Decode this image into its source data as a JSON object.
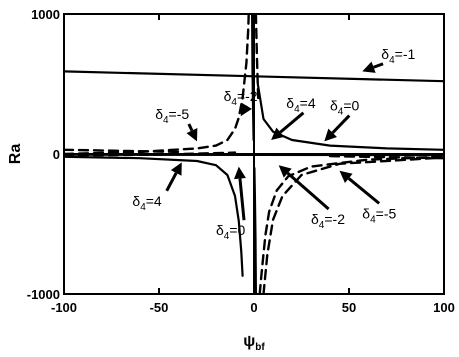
{
  "chart_data": {
    "type": "line",
    "xlabel": "ψ",
    "xlabel_sub": "bf",
    "ylabel": "Ra",
    "xlim": [
      -100,
      100
    ],
    "ylim": [
      -1000,
      1000
    ],
    "x_ticks": [
      "-100",
      "-50",
      "0",
      "50",
      "100"
    ],
    "y_ticks": [
      "-1000",
      "0",
      "1000"
    ],
    "grid": false,
    "series": [
      {
        "style": "solid",
        "segments": [
          [
            [
              -100,
              590
            ],
            [
              100,
              520
            ]
          ]
        ]
      },
      {
        "style": "solid",
        "segments": [
          [
            [
              -100,
              -20
            ],
            [
              -60,
              -30
            ],
            [
              -30,
              -50
            ],
            [
              -20,
              -80
            ],
            [
              -14,
              -150
            ],
            [
              -10,
              -300
            ],
            [
              -8,
              -480
            ],
            [
              -6.7,
              -700
            ],
            [
              -6,
              -870
            ]
          ],
          [
            [
              -1,
              1000
            ],
            [
              -0.8,
              600
            ],
            [
              -0.5,
              300
            ],
            [
              -0.2,
              100
            ]
          ],
          [
            [
              0.2,
              -100
            ],
            [
              0.5,
              -300
            ],
            [
              0.8,
              -600
            ],
            [
              1,
              -1000
            ]
          ],
          [
            [
              2,
              500
            ],
            [
              5,
              250
            ],
            [
              10,
              160
            ],
            [
              20,
              100
            ],
            [
              40,
              60
            ],
            [
              70,
              40
            ],
            [
              100,
              30
            ]
          ]
        ]
      },
      {
        "style": "solid",
        "segments": [
          [
            [
              -100,
              -5
            ],
            [
              100,
              -8
            ]
          ]
        ]
      },
      {
        "style": "dashed",
        "segments": [
          [
            [
              -100,
              0
            ],
            [
              -60,
              15
            ],
            [
              -30,
              40
            ],
            [
              -20,
              60
            ],
            [
              -14,
              100
            ],
            [
              -10,
              180
            ],
            [
              -8,
              260
            ],
            [
              -6,
              400
            ],
            [
              -4,
              650
            ],
            [
              -3,
              900
            ],
            [
              -2.8,
              1000
            ]
          ],
          [
            [
              3,
              -1000
            ],
            [
              4,
              -850
            ],
            [
              6,
              -580
            ],
            [
              8,
              -410
            ],
            [
              12,
              -260
            ],
            [
              18,
              -160
            ],
            [
              30,
              -90
            ],
            [
              60,
              -40
            ],
            [
              100,
              -20
            ]
          ]
        ]
      },
      {
        "style": "dashed",
        "segments": [
          [
            [
              -100,
              -10
            ],
            [
              -50,
              -5
            ],
            [
              -10,
              10
            ]
          ],
          [
            [
              1,
              1000
            ],
            [
              1.5,
              700
            ],
            [
              2.2,
              400
            ]
          ],
          [
            [
              5,
              -1000
            ],
            [
              7,
              -720
            ],
            [
              10,
              -470
            ],
            [
              15,
              -300
            ],
            [
              25,
              -150
            ],
            [
              45,
              -70
            ],
            [
              100,
              -25
            ]
          ],
          [
            [
              -100,
              30
            ],
            [
              -40,
              15
            ]
          ],
          [
            [
              40,
              -15
            ],
            [
              100,
              -30
            ]
          ]
        ]
      }
    ],
    "annotations": [
      {
        "base": "δ",
        "sub": "4",
        "text": "=-1",
        "x": 57,
        "y": 590,
        "tx": 67,
        "ty": 680
      },
      {
        "base": "δ",
        "sub": "4",
        "text": "=-2",
        "x": -7,
        "y": 270,
        "tx": -16,
        "ty": 380
      },
      {
        "base": "δ",
        "sub": "4",
        "text": "=-5",
        "x": -30,
        "y": 90,
        "tx": -52,
        "ty": 250
      },
      {
        "base": "δ",
        "sub": "4",
        "text": "=4",
        "x": 9,
        "y": 100,
        "tx": 17,
        "ty": 330
      },
      {
        "base": "δ",
        "sub": "4",
        "text": "=0",
        "x": 37,
        "y": 90,
        "tx": 40,
        "ty": 310
      },
      {
        "base": "δ",
        "sub": "4",
        "text": "=4",
        "x": -38,
        "y": -60,
        "tx": -64,
        "ty": -370
      },
      {
        "base": "δ",
        "sub": "4",
        "text": "=0",
        "x": -8,
        "y": -90,
        "tx": -20,
        "ty": -580
      },
      {
        "base": "δ",
        "sub": "4",
        "text": "=-2",
        "x": 13,
        "y": -80,
        "tx": 30,
        "ty": -500
      },
      {
        "base": "δ",
        "sub": "4",
        "text": "=-5",
        "x": 45,
        "y": -120,
        "tx": 57,
        "ty": -460
      }
    ]
  }
}
